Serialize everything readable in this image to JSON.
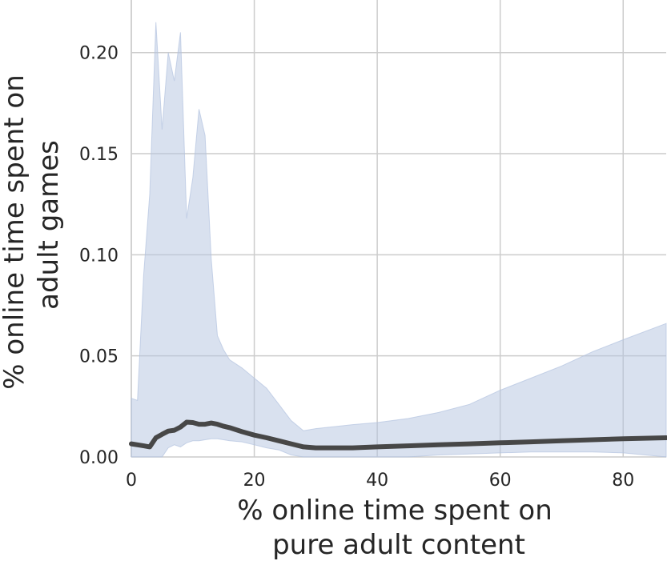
{
  "chart_data": {
    "type": "line",
    "xlabel": [
      "% online time spent on",
      "pure adult content"
    ],
    "ylabel": [
      "% online time spent on",
      "adult games"
    ],
    "xlim": [
      0,
      87
    ],
    "ylim": [
      0,
      0.226
    ],
    "xticks": [
      0,
      20,
      40,
      60,
      80
    ],
    "xtick_labels": [
      "0",
      "20",
      "40",
      "60",
      "80"
    ],
    "yticks": [
      0,
      0.05,
      0.1,
      0.15,
      0.2
    ],
    "ytick_labels": [
      "0.00",
      "0.05",
      "0.10",
      "0.15",
      "0.20"
    ],
    "grid": true,
    "colors": {
      "mean": "#474747",
      "band": "#b4c3e0"
    },
    "series": [
      {
        "x": [
          0,
          1,
          2,
          3,
          4,
          5,
          6,
          7,
          8,
          9,
          10,
          11,
          12,
          13,
          14,
          15,
          16,
          18,
          20,
          22,
          24,
          26,
          28,
          30,
          33,
          36,
          40,
          45,
          50,
          55,
          60,
          65,
          70,
          75,
          80,
          87
        ],
        "y": [
          0.0065,
          0.006,
          0.0055,
          0.005,
          0.0095,
          0.0112,
          0.0128,
          0.0132,
          0.0148,
          0.0172,
          0.017,
          0.0162,
          0.0162,
          0.0168,
          0.0162,
          0.0152,
          0.0145,
          0.0125,
          0.0108,
          0.0095,
          0.008,
          0.0065,
          0.005,
          0.0045,
          0.0045,
          0.0045,
          0.005,
          0.0055,
          0.006,
          0.0065,
          0.007,
          0.0075,
          0.008,
          0.0085,
          0.009,
          0.0095
        ],
        "upper": [
          0.029,
          0.028,
          0.09,
          0.13,
          0.215,
          0.162,
          0.2,
          0.186,
          0.21,
          0.118,
          0.138,
          0.172,
          0.159,
          0.098,
          0.06,
          0.053,
          0.048,
          0.044,
          0.039,
          0.034,
          0.026,
          0.018,
          0.013,
          0.014,
          0.015,
          0.016,
          0.017,
          0.019,
          0.022,
          0.026,
          0.033,
          0.039,
          0.045,
          0.052,
          0.058,
          0.066
        ],
        "lower": [
          0.0,
          0.0,
          0.0,
          0.0,
          0.0,
          0.0,
          0.0045,
          0.006,
          0.005,
          0.007,
          0.008,
          0.008,
          0.0085,
          0.009,
          0.009,
          0.0085,
          0.008,
          0.0075,
          0.006,
          0.0045,
          0.0035,
          0.001,
          0.0,
          0.0,
          0.0,
          0.0,
          0.0,
          0.0,
          0.001,
          0.0015,
          0.002,
          0.0025,
          0.0025,
          0.0025,
          0.002,
          0.0
        ]
      }
    ]
  }
}
